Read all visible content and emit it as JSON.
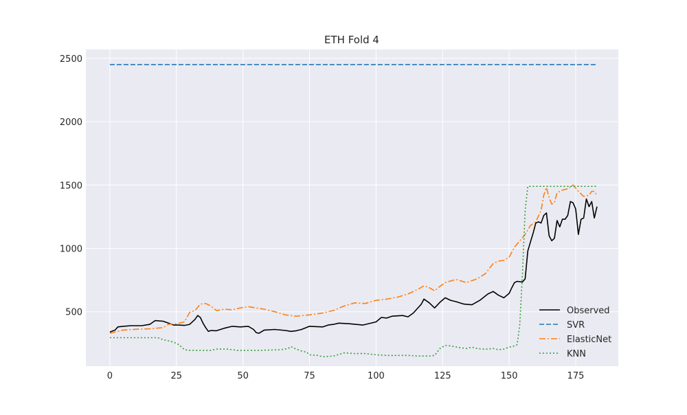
{
  "chart_data": {
    "type": "line",
    "title": "ETH Fold 4",
    "xlabel": "",
    "ylabel": "",
    "xlim": [
      -9,
      191
    ],
    "ylim": [
      70,
      2570
    ],
    "x_ticks": [
      0,
      25,
      50,
      75,
      100,
      125,
      150,
      175
    ],
    "y_ticks": [
      500,
      1000,
      1500,
      2000,
      2500
    ],
    "grid": true,
    "legend_position": "lower-right",
    "style": {
      "background": "#eaeaf2",
      "gridColor": "#ffffff"
    },
    "series": [
      {
        "name": "Observed",
        "color": "#000000",
        "dash": "solid",
        "keypoints": [
          [
            0,
            340
          ],
          [
            2,
            355
          ],
          [
            3,
            380
          ],
          [
            5,
            385
          ],
          [
            8,
            390
          ],
          [
            12,
            390
          ],
          [
            15,
            400
          ],
          [
            17,
            430
          ],
          [
            20,
            425
          ],
          [
            22,
            410
          ],
          [
            24,
            395
          ],
          [
            26,
            395
          ],
          [
            28,
            392
          ],
          [
            30,
            400
          ],
          [
            32,
            440
          ],
          [
            33,
            470
          ],
          [
            34,
            455
          ],
          [
            35,
            410
          ],
          [
            36,
            375
          ],
          [
            37,
            345
          ],
          [
            38,
            352
          ],
          [
            40,
            350
          ],
          [
            43,
            370
          ],
          [
            46,
            385
          ],
          [
            49,
            380
          ],
          [
            52,
            385
          ],
          [
            54,
            360
          ],
          [
            55,
            335
          ],
          [
            56,
            330
          ],
          [
            58,
            355
          ],
          [
            62,
            360
          ],
          [
            66,
            352
          ],
          [
            68,
            345
          ],
          [
            70,
            350
          ],
          [
            72,
            360
          ],
          [
            75,
            385
          ],
          [
            80,
            380
          ],
          [
            82,
            395
          ],
          [
            84,
            400
          ],
          [
            86,
            410
          ],
          [
            90,
            405
          ],
          [
            95,
            395
          ],
          [
            100,
            420
          ],
          [
            102,
            455
          ],
          [
            104,
            450
          ],
          [
            106,
            465
          ],
          [
            110,
            470
          ],
          [
            112,
            460
          ],
          [
            114,
            490
          ],
          [
            117,
            560
          ],
          [
            118,
            600
          ],
          [
            120,
            570
          ],
          [
            122,
            530
          ],
          [
            124,
            575
          ],
          [
            126,
            610
          ],
          [
            128,
            590
          ],
          [
            130,
            580
          ],
          [
            133,
            560
          ],
          [
            136,
            555
          ],
          [
            139,
            590
          ],
          [
            142,
            640
          ],
          [
            144,
            660
          ],
          [
            146,
            630
          ],
          [
            148,
            610
          ],
          [
            150,
            645
          ],
          [
            151,
            690
          ],
          [
            152,
            730
          ],
          [
            153,
            740
          ],
          [
            155,
            735
          ],
          [
            156,
            760
          ],
          [
            157,
            980
          ],
          [
            158,
            1050
          ],
          [
            159,
            1120
          ],
          [
            160,
            1200
          ],
          [
            161,
            1210
          ],
          [
            162,
            1200
          ],
          [
            163,
            1260
          ],
          [
            164,
            1280
          ],
          [
            165,
            1100
          ],
          [
            166,
            1060
          ],
          [
            167,
            1080
          ],
          [
            168,
            1220
          ],
          [
            169,
            1170
          ],
          [
            170,
            1230
          ],
          [
            171,
            1230
          ],
          [
            172,
            1260
          ],
          [
            173,
            1370
          ],
          [
            174,
            1360
          ],
          [
            175,
            1310
          ],
          [
            176,
            1110
          ],
          [
            177,
            1230
          ],
          [
            178,
            1240
          ],
          [
            179,
            1390
          ],
          [
            180,
            1330
          ],
          [
            181,
            1370
          ],
          [
            182,
            1240
          ],
          [
            183,
            1330
          ]
        ]
      },
      {
        "name": "SVR",
        "color": "#1f77b4",
        "dash": "dashed",
        "keypoints": [
          [
            0,
            2450
          ],
          [
            183,
            2450
          ]
        ]
      },
      {
        "name": "ElasticNet",
        "color": "#ff7f0e",
        "dash": "dashdot",
        "keypoints": [
          [
            0,
            330
          ],
          [
            5,
            355
          ],
          [
            10,
            362
          ],
          [
            15,
            365
          ],
          [
            20,
            375
          ],
          [
            22,
            400
          ],
          [
            25,
            405
          ],
          [
            28,
            420
          ],
          [
            30,
            495
          ],
          [
            32,
            510
          ],
          [
            34,
            560
          ],
          [
            36,
            565
          ],
          [
            38,
            545
          ],
          [
            40,
            510
          ],
          [
            43,
            520
          ],
          [
            46,
            515
          ],
          [
            49,
            530
          ],
          [
            52,
            540
          ],
          [
            55,
            530
          ],
          [
            58,
            520
          ],
          [
            62,
            500
          ],
          [
            66,
            475
          ],
          [
            70,
            465
          ],
          [
            75,
            475
          ],
          [
            80,
            490
          ],
          [
            84,
            510
          ],
          [
            88,
            545
          ],
          [
            92,
            570
          ],
          [
            96,
            565
          ],
          [
            100,
            590
          ],
          [
            104,
            600
          ],
          [
            108,
            615
          ],
          [
            112,
            640
          ],
          [
            116,
            680
          ],
          [
            118,
            705
          ],
          [
            120,
            690
          ],
          [
            122,
            665
          ],
          [
            124,
            700
          ],
          [
            126,
            730
          ],
          [
            130,
            755
          ],
          [
            134,
            730
          ],
          [
            138,
            760
          ],
          [
            141,
            800
          ],
          [
            144,
            880
          ],
          [
            146,
            900
          ],
          [
            148,
            905
          ],
          [
            150,
            930
          ],
          [
            152,
            1010
          ],
          [
            154,
            1060
          ],
          [
            156,
            1110
          ],
          [
            158,
            1180
          ],
          [
            160,
            1210
          ],
          [
            162,
            1300
          ],
          [
            163,
            1420
          ],
          [
            164,
            1480
          ],
          [
            165,
            1400
          ],
          [
            166,
            1350
          ],
          [
            167,
            1360
          ],
          [
            168,
            1440
          ],
          [
            170,
            1460
          ],
          [
            172,
            1470
          ],
          [
            174,
            1500
          ],
          [
            176,
            1450
          ],
          [
            178,
            1410
          ],
          [
            180,
            1420
          ],
          [
            181,
            1450
          ],
          [
            182,
            1450
          ],
          [
            183,
            1420
          ]
        ]
      },
      {
        "name": "KNN",
        "color": "#2ca02c",
        "dash": "dotted",
        "keypoints": [
          [
            0,
            295
          ],
          [
            18,
            295
          ],
          [
            20,
            280
          ],
          [
            24,
            260
          ],
          [
            26,
            240
          ],
          [
            28,
            200
          ],
          [
            30,
            195
          ],
          [
            38,
            195
          ],
          [
            40,
            205
          ],
          [
            44,
            205
          ],
          [
            48,
            195
          ],
          [
            56,
            195
          ],
          [
            64,
            200
          ],
          [
            67,
            210
          ],
          [
            68,
            225
          ],
          [
            70,
            205
          ],
          [
            72,
            190
          ],
          [
            74,
            180
          ],
          [
            75,
            160
          ],
          [
            78,
            155
          ],
          [
            80,
            145
          ],
          [
            84,
            150
          ],
          [
            88,
            175
          ],
          [
            92,
            170
          ],
          [
            96,
            170
          ],
          [
            100,
            160
          ],
          [
            104,
            155
          ],
          [
            108,
            155
          ],
          [
            112,
            155
          ],
          [
            116,
            150
          ],
          [
            120,
            150
          ],
          [
            122,
            155
          ],
          [
            124,
            210
          ],
          [
            126,
            235
          ],
          [
            128,
            230
          ],
          [
            132,
            215
          ],
          [
            134,
            210
          ],
          [
            136,
            220
          ],
          [
            138,
            210
          ],
          [
            140,
            205
          ],
          [
            142,
            205
          ],
          [
            144,
            210
          ],
          [
            146,
            200
          ],
          [
            148,
            205
          ],
          [
            150,
            220
          ],
          [
            152,
            230
          ],
          [
            153,
            240
          ],
          [
            154,
            400
          ],
          [
            155,
            800
          ],
          [
            156,
            1300
          ],
          [
            157,
            1490
          ],
          [
            183,
            1490
          ]
        ]
      }
    ]
  }
}
